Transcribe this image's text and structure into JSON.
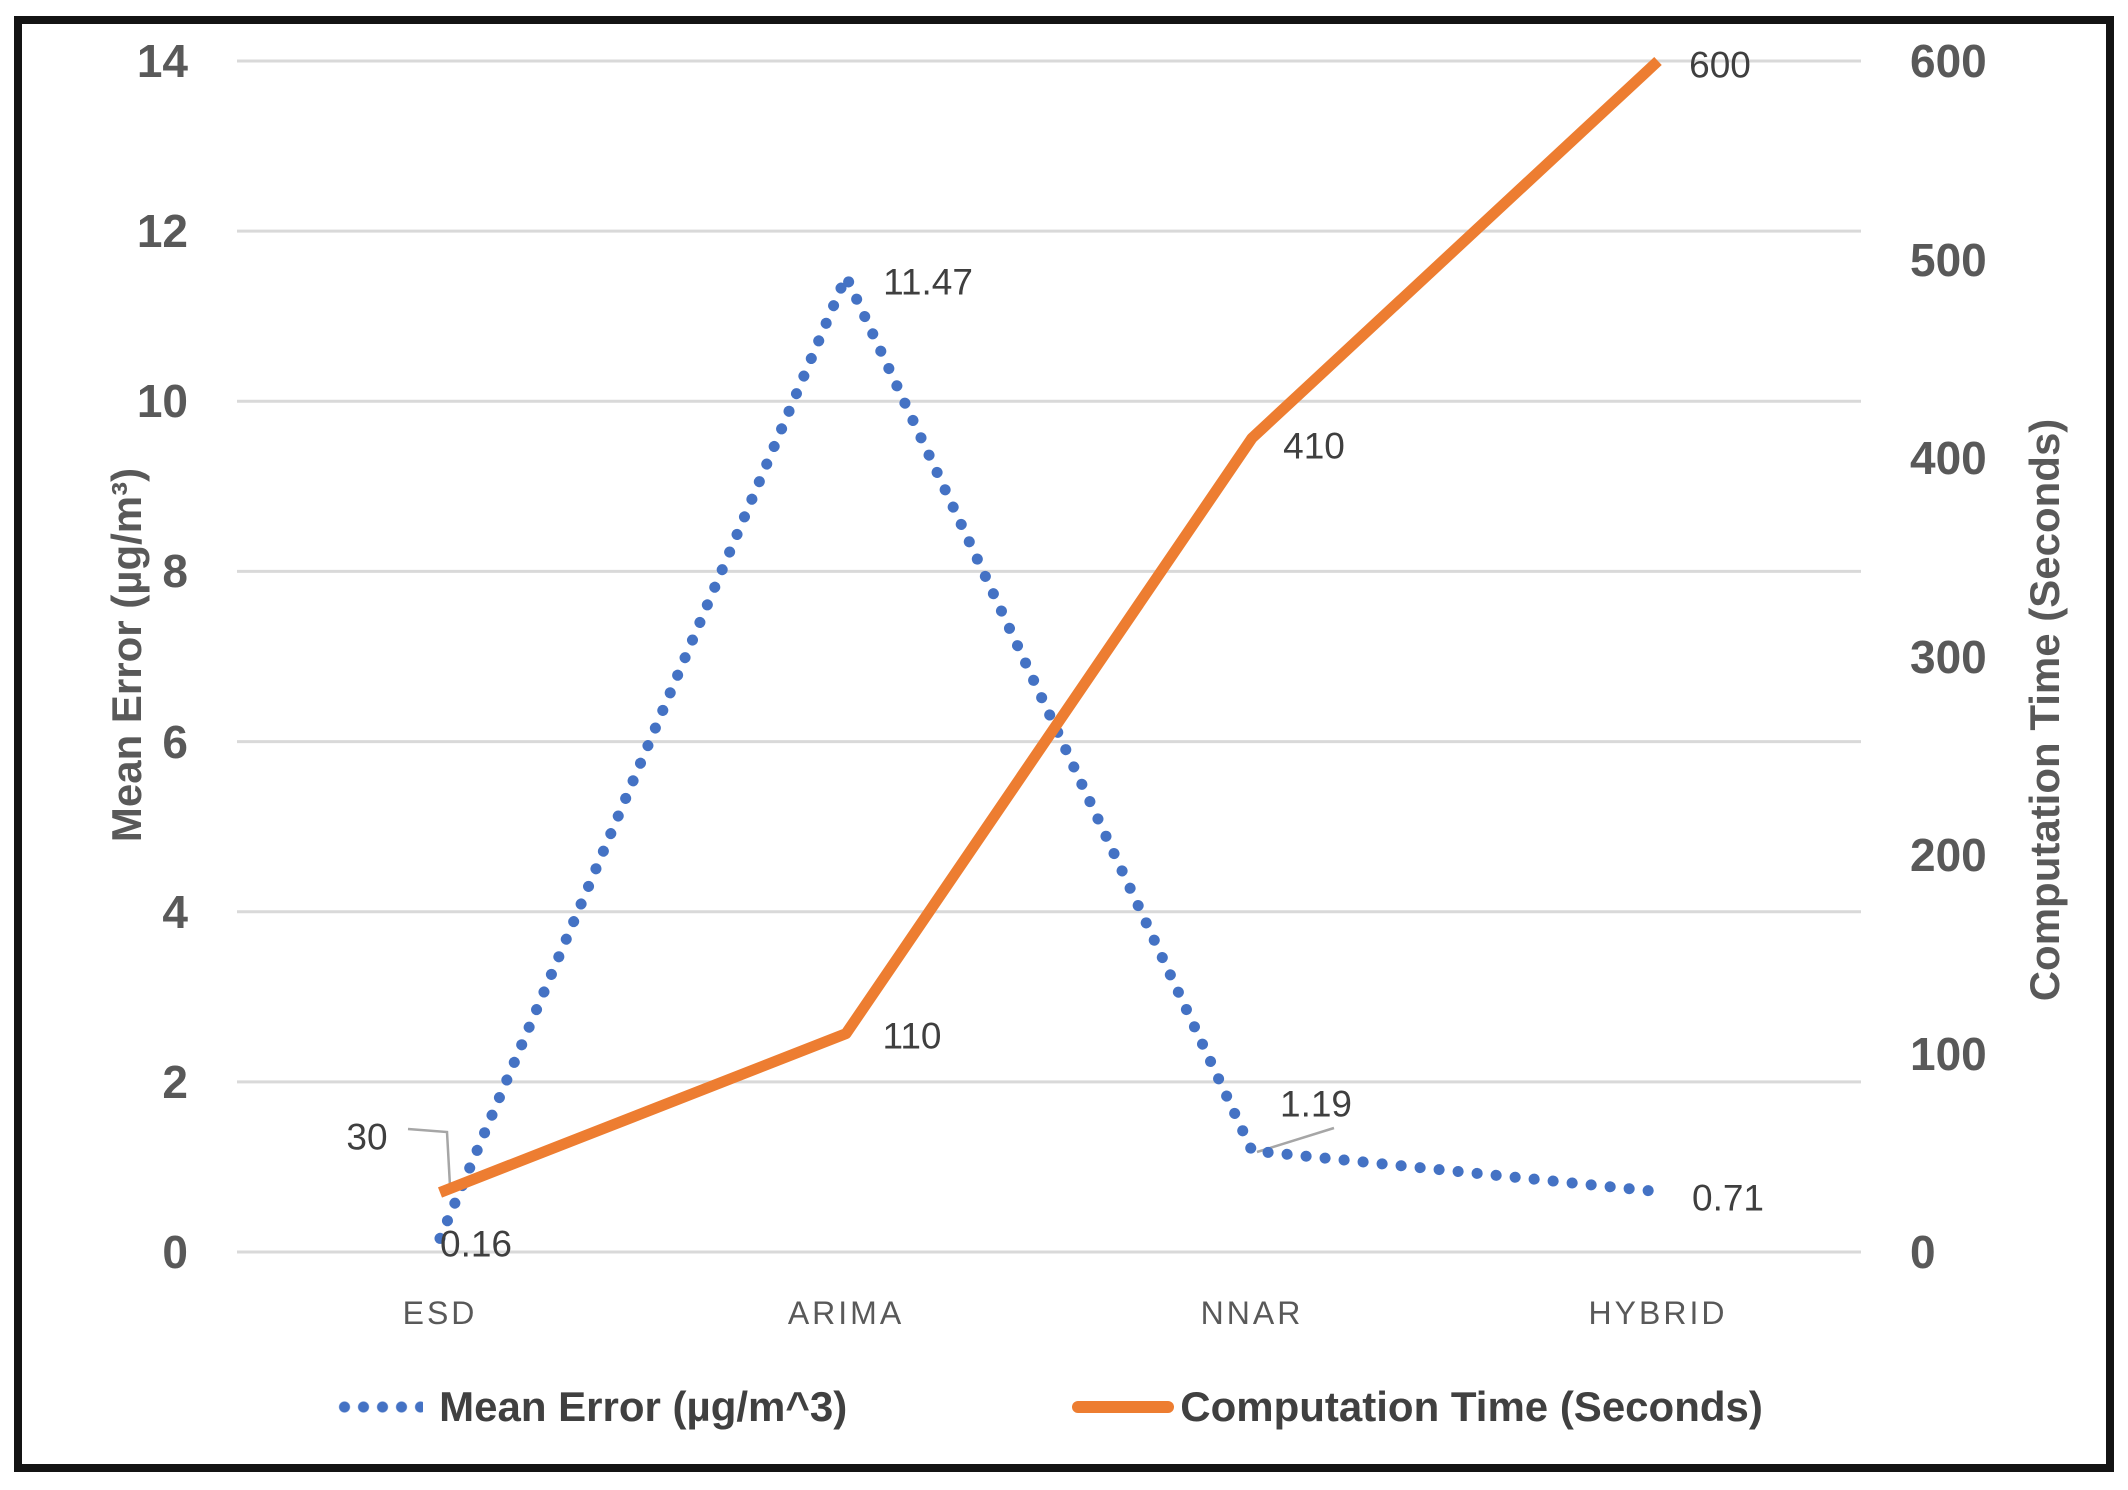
{
  "chart_data": {
    "type": "line",
    "categories": [
      "ESD",
      "ARIMA",
      "NNAR",
      "HYBRID"
    ],
    "series": [
      {
        "name": "Mean Error (µg/m^3)",
        "axis": "left",
        "line_style": "dotted",
        "color": "#4472C4",
        "values": [
          0.16,
          11.47,
          1.19,
          0.71
        ],
        "data_labels": [
          "0.16",
          "11.47",
          "1.19",
          "0.71"
        ]
      },
      {
        "name": "Computation Time (Seconds)",
        "axis": "right",
        "line_style": "solid",
        "color": "#ED7D31",
        "values": [
          30,
          110,
          410,
          600
        ],
        "data_labels": [
          "30",
          "110",
          "410",
          "600"
        ]
      }
    ],
    "left_axis": {
      "title": "Mean Error (µg/m³)",
      "min": 0,
      "max": 14,
      "step": 2,
      "ticks": [
        "0",
        "2",
        "4",
        "6",
        "8",
        "10",
        "12",
        "14"
      ]
    },
    "right_axis": {
      "title": "Computation Time (Seconds)",
      "min": 0,
      "max": 600,
      "step": 100,
      "ticks": [
        "0",
        "100",
        "200",
        "300",
        "400",
        "500",
        "600"
      ]
    },
    "grid": true,
    "legend_position": "bottom"
  },
  "legend": {
    "items": [
      {
        "label": "Mean Error (µg/m^3)",
        "swatch": "dotted-line",
        "color": "#4472C4"
      },
      {
        "label": "Computation Time (Seconds)",
        "swatch": "solid-line",
        "color": "#ED7D31"
      }
    ]
  },
  "colors": {
    "grid": "#D9D9D9",
    "tick_text": "#595959",
    "data_label_text": "#3f3f3f",
    "leader_line": "#A6A6A6",
    "frame_border": "#141414"
  }
}
